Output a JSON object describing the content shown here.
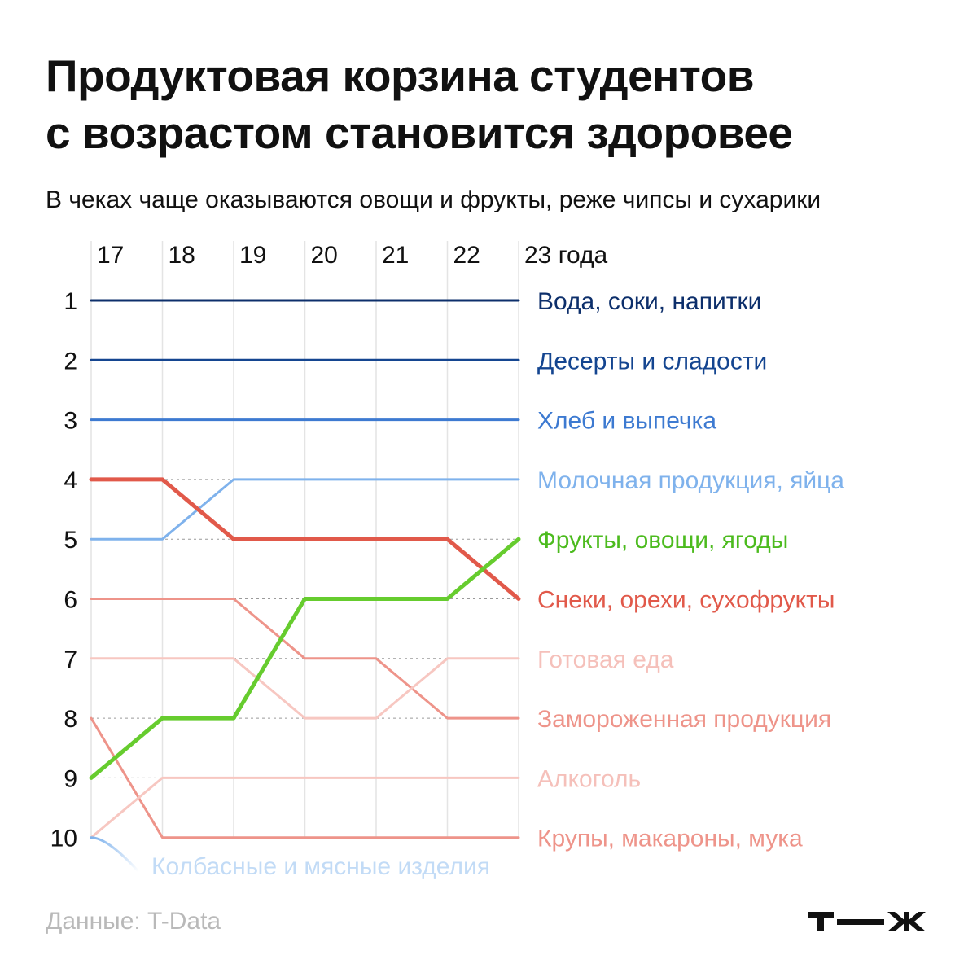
{
  "title_line1": "Продуктовая корзина студентов",
  "title_line2": "с возрастом становится здоровее",
  "subtitle": "В чеках чаще оказываются овощи и фрукты, реже чипсы и сухарики",
  "source": "Данные: T-Data",
  "logo": "т—ж",
  "chart_data": {
    "type": "bump",
    "x": [
      17,
      18,
      19,
      20,
      21,
      22,
      23
    ],
    "x_tick_labels": [
      "17",
      "18",
      "19",
      "20",
      "21",
      "22",
      "23 года"
    ],
    "y_tick_labels": [
      "1",
      "2",
      "3",
      "4",
      "5",
      "6",
      "7",
      "8",
      "9",
      "10"
    ],
    "ylim": [
      1,
      10
    ],
    "y_inverted": true,
    "series": [
      {
        "name": "Вода, соки, напитки",
        "ranks": [
          1,
          1,
          1,
          1,
          1,
          1,
          1
        ],
        "color": "#0d2f6b",
        "width": 3
      },
      {
        "name": "Десерты и сладости",
        "ranks": [
          2,
          2,
          2,
          2,
          2,
          2,
          2
        ],
        "color": "#144590",
        "width": 3
      },
      {
        "name": "Хлеб и выпечка",
        "ranks": [
          3,
          3,
          3,
          3,
          3,
          3,
          3
        ],
        "color": "#3d7ad1",
        "width": 3
      },
      {
        "name": "Молочная продукция, яйца",
        "ranks": [
          5,
          5,
          4,
          4,
          4,
          4,
          4
        ],
        "color": "#7fb2ec",
        "width": 3
      },
      {
        "name": "Снеки, орехи, сухофрукты",
        "ranks": [
          4,
          4,
          5,
          5,
          5,
          5,
          6
        ],
        "color": "#e1594a",
        "width": 5
      },
      {
        "name": "Фрукты, овощи, ягоды",
        "ranks": [
          9,
          8,
          8,
          6,
          6,
          6,
          5
        ],
        "color": "#66cc2e",
        "width": 5
      },
      {
        "name": "Замороженная продукция",
        "ranks": [
          6,
          6,
          6,
          7,
          7,
          8,
          8
        ],
        "color": "#ee948a",
        "width": 3
      },
      {
        "name": "Готовая еда",
        "ranks": [
          7,
          7,
          7,
          8,
          8,
          7,
          7
        ],
        "color": "#f7c7c1",
        "width": 3
      },
      {
        "name": "Крупы, макароны, мука",
        "ranks": [
          8,
          10,
          10,
          10,
          10,
          10,
          10
        ],
        "color": "#ee948a",
        "width": 3
      },
      {
        "name": "Алкоголь",
        "ranks": [
          10,
          9,
          9,
          9,
          9,
          9,
          9
        ],
        "color": "#f7c7c1",
        "width": 3
      },
      {
        "name": "Колбасные и мясные изделия",
        "ranks": [
          10,
          10.5
        ],
        "color": "#7fb2ec",
        "width": 3,
        "fades_out": true
      }
    ],
    "end_labels": [
      {
        "text": "Вода, соки, напитки",
        "rank": 1,
        "color": "#0d2f6b"
      },
      {
        "text": "Десерты и сладости",
        "rank": 2,
        "color": "#144590"
      },
      {
        "text": "Хлеб и выпечка",
        "rank": 3,
        "color": "#3d7ad1"
      },
      {
        "text": "Молочная продукция, яйца",
        "rank": 4,
        "color": "#7fb2ec"
      },
      {
        "text": "Фрукты, овощи, ягоды",
        "rank": 5,
        "color": "#4cbb1e"
      },
      {
        "text": "Снеки, орехи, сухофрукты",
        "rank": 6,
        "color": "#e1594a"
      },
      {
        "text": "Готовая еда",
        "rank": 7,
        "color": "#f5c0ba"
      },
      {
        "text": "Замороженная продукция",
        "rank": 8,
        "color": "#ee948a"
      },
      {
        "text": "Алкоголь",
        "rank": 9,
        "color": "#f5c0ba"
      },
      {
        "text": "Крупы, макароны, мука",
        "rank": 10,
        "color": "#ee948a"
      }
    ],
    "dropped_label": {
      "text": "Колбасные и мясные изделия",
      "color": "#c2dbf6"
    }
  }
}
